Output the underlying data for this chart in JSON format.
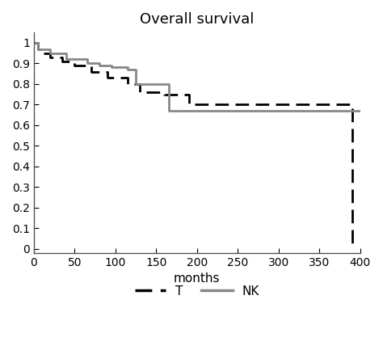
{
  "title": "Overall survival",
  "xlabel": "months",
  "xlim": [
    0,
    400
  ],
  "ylim": [
    -0.02,
    1.05
  ],
  "xticks": [
    0,
    50,
    100,
    150,
    200,
    250,
    300,
    350,
    400
  ],
  "yticks": [
    0,
    0.1,
    0.2,
    0.3,
    0.4,
    0.5,
    0.6,
    0.7,
    0.8,
    0.9,
    1
  ],
  "ytick_labels": [
    "0",
    "0.1",
    "0.2",
    "0.3",
    "0.4",
    "0.5",
    "0.6",
    "0.7",
    "0.8",
    "0.9",
    "1"
  ],
  "T_x": [
    0,
    5,
    10,
    20,
    35,
    50,
    70,
    90,
    115,
    130,
    160,
    190,
    390,
    390
  ],
  "T_y": [
    1.0,
    0.97,
    0.95,
    0.93,
    0.91,
    0.89,
    0.86,
    0.83,
    0.8,
    0.76,
    0.75,
    0.7,
    0.7,
    0.0
  ],
  "NK_x": [
    0,
    5,
    20,
    40,
    65,
    80,
    95,
    115,
    125,
    165,
    400
  ],
  "NK_y": [
    1.0,
    0.97,
    0.95,
    0.92,
    0.9,
    0.89,
    0.88,
    0.87,
    0.8,
    0.67,
    0.67
  ],
  "T_color": "#000000",
  "NK_color": "#888888",
  "T_label": "T",
  "NK_label": "NK",
  "T_linewidth": 2.0,
  "NK_linewidth": 2.0,
  "title_fontsize": 13,
  "label_fontsize": 11,
  "tick_fontsize": 10,
  "legend_fontsize": 11
}
